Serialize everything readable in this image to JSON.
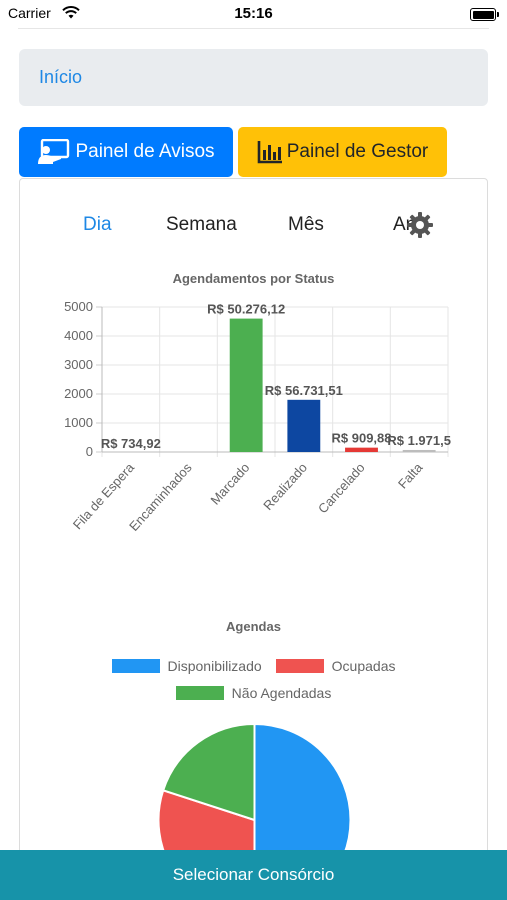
{
  "status_bar": {
    "carrier": "Carrier",
    "time": "15:16"
  },
  "breadcrumb": {
    "label": "Início"
  },
  "buttons": {
    "avisos": "Painel de Avisos",
    "gestor": "Painel de Gestor"
  },
  "tabs": [
    {
      "label": "Dia",
      "active": true
    },
    {
      "label": "Semana",
      "active": false
    },
    {
      "label": "Mês",
      "active": false
    },
    {
      "label": "Ano",
      "active": false
    }
  ],
  "chart_data": [
    {
      "type": "bar",
      "title": "Agendamentos por Status",
      "categories": [
        "Fila de Espera",
        "Encaminhados",
        "Marcado",
        "Realizado",
        "Cancelado",
        "Falta"
      ],
      "values": [
        0,
        0,
        4600,
        1800,
        150,
        70
      ],
      "data_labels": [
        "R$ 734,92",
        "",
        "R$ 50.276,12",
        "R$ 56.731,51",
        "R$ 909,88",
        "R$ 1.971,5"
      ],
      "colors": [
        "#9e9e9e",
        "#9e9e9e",
        "#4caf50",
        "#0d47a1",
        "#e53935",
        "#bdbdbd"
      ],
      "ylim": [
        0,
        5000
      ],
      "yticks": [
        0,
        1000,
        2000,
        3000,
        4000,
        5000
      ],
      "grid": true,
      "xlabel": "",
      "ylabel": ""
    },
    {
      "type": "pie",
      "title": "Agendas",
      "legend_position": "top",
      "series": [
        {
          "name": "Disponibilizado",
          "value": 50,
          "color": "#2196f3"
        },
        {
          "name": "Ocupadas",
          "value": 30,
          "color": "#ef5350"
        },
        {
          "name": "Não Agendadas",
          "value": 20,
          "color": "#4caf50"
        }
      ]
    }
  ],
  "footer": {
    "label": "Selecionar Consórcio"
  }
}
